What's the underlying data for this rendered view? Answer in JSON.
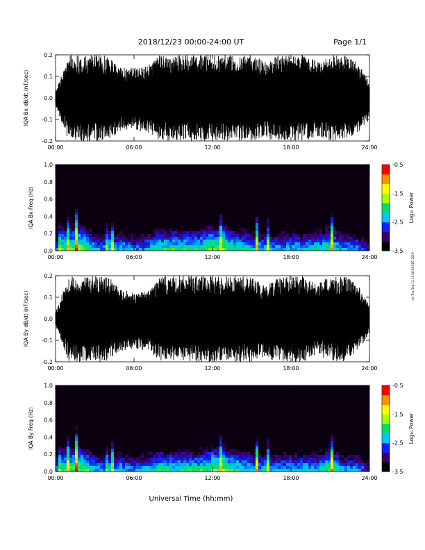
{
  "header": {
    "date_range": "2018/12/23  00:00-24:00 UT",
    "page": "Page 1/1"
  },
  "x_axis": {
    "label": "Universal Time (hh:mm)",
    "ticks": [
      "00:00",
      "06:00",
      "12:00",
      "18:00",
      "24:00"
    ],
    "range_hours": [
      0,
      24
    ]
  },
  "colorbar": {
    "label": "Log₁₀ Power",
    "ticks": [
      "-0.5",
      "-1.5",
      "-2.5",
      "-3.5"
    ],
    "range": [
      -3.5,
      -0.5
    ],
    "colors": [
      "#000000",
      "#3a0066",
      "#1020ff",
      "#00c8ff",
      "#00e060",
      "#a8ff00",
      "#ffff00",
      "#ff9000",
      "#ff0000"
    ]
  },
  "side_note": "rst Thu Sep 12 11:08:58 EDT 2019",
  "chart_data": [
    {
      "type": "line",
      "ylabel": "IQA Bx dB/dt (nT/sec)",
      "ylim": [
        -0.2,
        0.2
      ],
      "yticks": [
        "0.2",
        "0.1",
        "0.0",
        "-0.1",
        "-0.2"
      ],
      "x_hours": [
        0,
        1,
        2,
        3,
        4,
        5,
        6,
        7,
        8,
        9,
        10,
        11,
        12,
        13,
        14,
        15,
        16,
        17,
        18,
        19,
        20,
        21,
        22,
        23,
        24
      ],
      "envelope_max": [
        0.03,
        0.2,
        0.2,
        0.2,
        0.2,
        0.14,
        0.14,
        0.15,
        0.2,
        0.2,
        0.2,
        0.2,
        0.2,
        0.2,
        0.2,
        0.2,
        0.17,
        0.2,
        0.2,
        0.2,
        0.17,
        0.2,
        0.2,
        0.17,
        0.08
      ],
      "envelope_min": [
        -0.04,
        -0.2,
        -0.2,
        -0.2,
        -0.2,
        -0.15,
        -0.15,
        -0.16,
        -0.2,
        -0.2,
        -0.2,
        -0.2,
        -0.2,
        -0.2,
        -0.2,
        -0.2,
        -0.19,
        -0.2,
        -0.2,
        -0.2,
        -0.18,
        -0.2,
        -0.2,
        -0.17,
        -0.1
      ]
    },
    {
      "type": "heatmap",
      "ylabel": "IQA Bx Freq (Hz)",
      "ylim": [
        0,
        1
      ],
      "yticks": [
        "1.0",
        "0.8",
        "0.6",
        "0.4",
        "0.2",
        "0.0"
      ],
      "x_hours": [
        0,
        1,
        2,
        3,
        4,
        5,
        6,
        7,
        8,
        9,
        10,
        11,
        12,
        13,
        14,
        15,
        16,
        17,
        18,
        19,
        20,
        21,
        22,
        23,
        24
      ],
      "low_freq_log_power": [
        -2.6,
        -1.8,
        -1.6,
        -2.3,
        -2.4,
        -2.2,
        -2.5,
        -2.3,
        -2.0,
        -2.0,
        -2.0,
        -2.0,
        -1.7,
        -1.8,
        -2.0,
        -2.2,
        -2.3,
        -2.3,
        -2.2,
        -2.2,
        -2.2,
        -1.8,
        -2.4,
        -2.3,
        -2.8
      ],
      "bright_streaks_hours": [
        0.4,
        0.9,
        1.6,
        4.0,
        4.3,
        12.7,
        15.4,
        16.2,
        21.1
      ]
    },
    {
      "type": "line",
      "ylabel": "IQA By dB/dt (nT/sec)",
      "ylim": [
        -0.2,
        0.2
      ],
      "yticks": [
        "0.2",
        "0.1",
        "0.0",
        "-0.1",
        "-0.2"
      ],
      "x_hours": [
        0,
        1,
        2,
        3,
        4,
        5,
        6,
        7,
        8,
        9,
        10,
        11,
        12,
        13,
        14,
        15,
        16,
        17,
        18,
        19,
        20,
        21,
        22,
        23,
        24
      ],
      "envelope_max": [
        0.03,
        0.2,
        0.2,
        0.2,
        0.2,
        0.14,
        0.12,
        0.13,
        0.2,
        0.2,
        0.2,
        0.2,
        0.2,
        0.2,
        0.2,
        0.2,
        0.15,
        0.2,
        0.2,
        0.2,
        0.16,
        0.2,
        0.2,
        0.17,
        0.06
      ],
      "envelope_min": [
        -0.03,
        -0.2,
        -0.2,
        -0.2,
        -0.2,
        -0.15,
        -0.14,
        -0.15,
        -0.2,
        -0.2,
        -0.2,
        -0.2,
        -0.2,
        -0.2,
        -0.2,
        -0.2,
        -0.18,
        -0.2,
        -0.2,
        -0.2,
        -0.17,
        -0.2,
        -0.2,
        -0.16,
        -0.07
      ]
    },
    {
      "type": "heatmap",
      "ylabel": "IQA By Freq (Hz)",
      "ylim": [
        0,
        1
      ],
      "yticks": [
        "1.0",
        "0.8",
        "0.6",
        "0.4",
        "0.2",
        "0.0"
      ],
      "x_hours": [
        0,
        1,
        2,
        3,
        4,
        5,
        6,
        7,
        8,
        9,
        10,
        11,
        12,
        13,
        14,
        15,
        16,
        17,
        18,
        19,
        20,
        21,
        22,
        23,
        24
      ],
      "low_freq_log_power": [
        -2.6,
        -1.8,
        -1.6,
        -2.3,
        -2.4,
        -2.2,
        -2.5,
        -2.3,
        -2.0,
        -2.0,
        -2.0,
        -2.0,
        -1.7,
        -1.8,
        -2.0,
        -2.2,
        -2.3,
        -2.3,
        -2.2,
        -2.2,
        -2.2,
        -1.8,
        -2.4,
        -2.3,
        -2.8
      ],
      "bright_streaks_hours": [
        0.4,
        0.9,
        1.6,
        4.0,
        4.3,
        12.7,
        15.4,
        16.2,
        21.1
      ]
    }
  ]
}
